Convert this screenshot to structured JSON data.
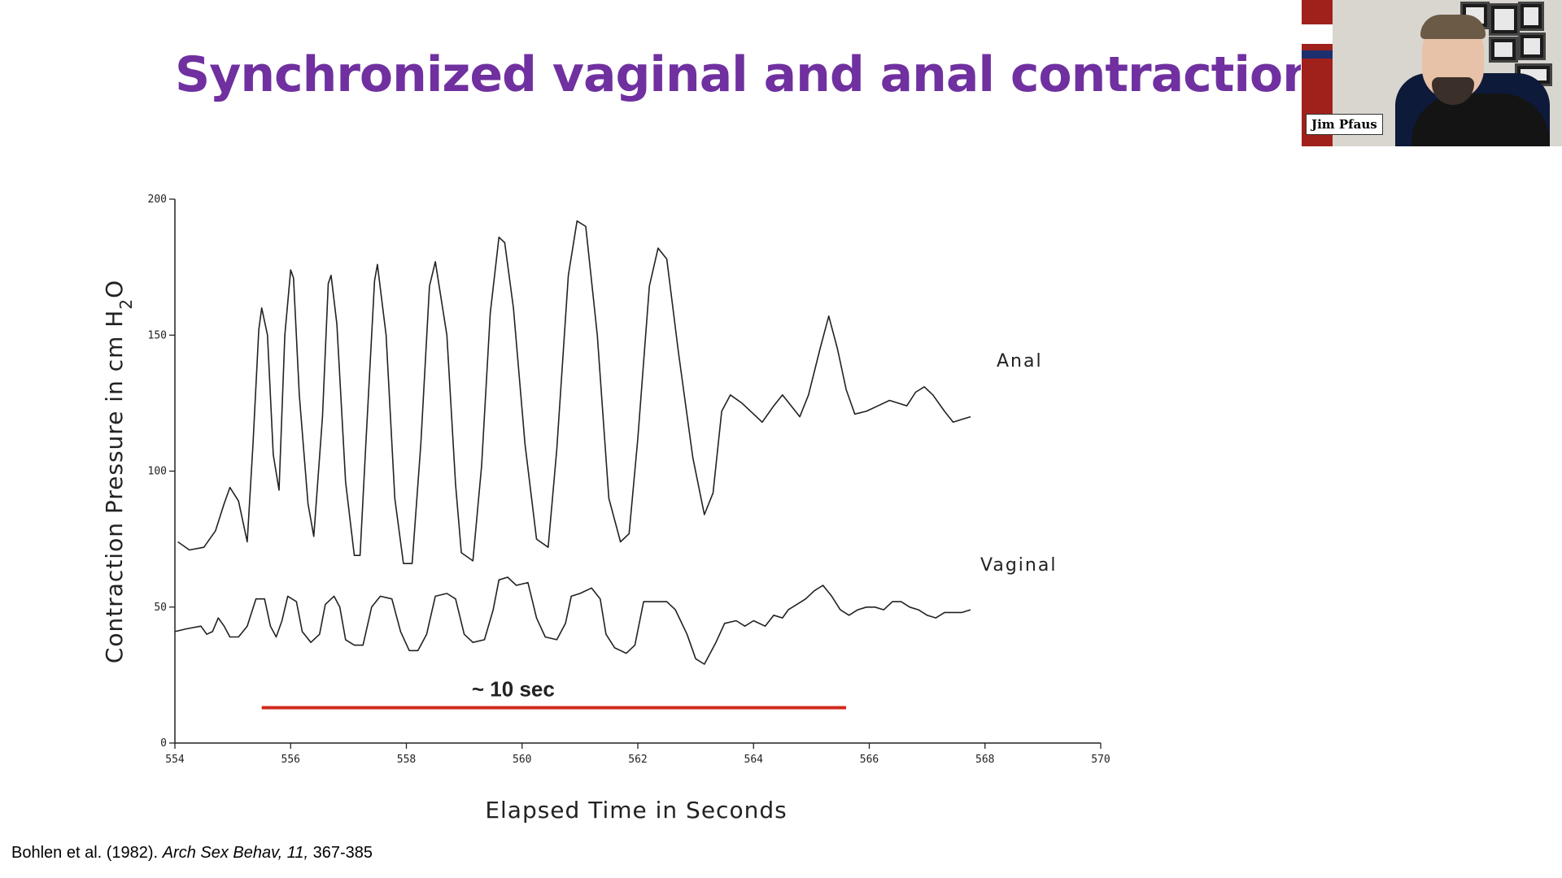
{
  "slide": {
    "title": "Synchronized vaginal and anal contractions at or",
    "citation": {
      "authors_year": "Bohlen et al. (1982).",
      "journal": "Arch Sex Behav,",
      "volume": "11,",
      "pages": "367-385"
    }
  },
  "video_tile": {
    "participant_name": "Jim Pfaus"
  },
  "chart_data": {
    "type": "line",
    "title": "",
    "xlabel": "Elapsed Time in Seconds",
    "ylabel": "Contraction Pressure in cm H2O",
    "ylabel_parts": {
      "main": "Contraction Pressure in  cm  H",
      "sub": "2",
      "tail": "O"
    },
    "xlim": [
      554,
      570
    ],
    "ylim": [
      0,
      200
    ],
    "x_ticks": [
      554,
      556,
      558,
      560,
      562,
      564,
      566,
      568,
      570
    ],
    "y_ticks": [
      0,
      50,
      100,
      150,
      200
    ],
    "grid": false,
    "series": [
      {
        "name": "Anal",
        "color": "#222222",
        "points": [
          [
            554.05,
            74
          ],
          [
            554.25,
            71
          ],
          [
            554.5,
            72
          ],
          [
            554.7,
            78
          ],
          [
            554.85,
            88
          ],
          [
            554.95,
            94
          ],
          [
            555.1,
            89
          ],
          [
            555.25,
            74
          ],
          [
            555.35,
            110
          ],
          [
            555.45,
            152
          ],
          [
            555.5,
            160
          ],
          [
            555.6,
            150
          ],
          [
            555.7,
            106
          ],
          [
            555.8,
            93
          ],
          [
            555.9,
            150
          ],
          [
            556.0,
            174
          ],
          [
            556.05,
            171
          ],
          [
            556.15,
            128
          ],
          [
            556.3,
            88
          ],
          [
            556.4,
            76
          ],
          [
            556.55,
            120
          ],
          [
            556.65,
            169
          ],
          [
            556.7,
            172
          ],
          [
            556.8,
            154
          ],
          [
            556.95,
            96
          ],
          [
            557.1,
            69
          ],
          [
            557.2,
            69
          ],
          [
            557.3,
            110
          ],
          [
            557.45,
            170
          ],
          [
            557.5,
            176
          ],
          [
            557.65,
            150
          ],
          [
            557.8,
            90
          ],
          [
            557.95,
            66
          ],
          [
            558.1,
            66
          ],
          [
            558.25,
            110
          ],
          [
            558.4,
            168
          ],
          [
            558.5,
            177
          ],
          [
            558.7,
            150
          ],
          [
            558.85,
            95
          ],
          [
            558.95,
            70
          ],
          [
            559.15,
            67
          ],
          [
            559.3,
            102
          ],
          [
            559.45,
            158
          ],
          [
            559.6,
            186
          ],
          [
            559.7,
            184
          ],
          [
            559.85,
            160
          ],
          [
            560.05,
            110
          ],
          [
            560.25,
            75
          ],
          [
            560.45,
            72
          ],
          [
            560.6,
            108
          ],
          [
            560.8,
            172
          ],
          [
            560.95,
            192
          ],
          [
            561.1,
            190
          ],
          [
            561.3,
            150
          ],
          [
            561.5,
            90
          ],
          [
            561.7,
            74
          ],
          [
            561.85,
            77
          ],
          [
            562.0,
            112
          ],
          [
            562.2,
            168
          ],
          [
            562.35,
            182
          ],
          [
            562.5,
            178
          ],
          [
            562.7,
            144
          ],
          [
            562.95,
            105
          ],
          [
            563.15,
            84
          ],
          [
            563.3,
            92
          ],
          [
            563.45,
            122
          ],
          [
            563.6,
            128
          ],
          [
            563.8,
            125
          ],
          [
            563.95,
            122
          ],
          [
            564.15,
            118
          ],
          [
            564.35,
            124
          ],
          [
            564.5,
            128
          ],
          [
            564.65,
            124
          ],
          [
            564.8,
            120
          ],
          [
            564.95,
            128
          ],
          [
            565.15,
            145
          ],
          [
            565.3,
            157
          ],
          [
            565.45,
            145
          ],
          [
            565.6,
            130
          ],
          [
            565.75,
            121
          ],
          [
            565.95,
            122
          ],
          [
            566.15,
            124
          ],
          [
            566.35,
            126
          ],
          [
            566.5,
            125
          ],
          [
            566.65,
            124
          ],
          [
            566.8,
            129
          ],
          [
            566.95,
            131
          ],
          [
            567.1,
            128
          ],
          [
            567.3,
            122
          ],
          [
            567.45,
            118
          ],
          [
            567.6,
            119
          ],
          [
            567.75,
            120
          ]
        ]
      },
      {
        "name": "Vaginal",
        "color": "#222222",
        "points": [
          [
            554.0,
            41
          ],
          [
            554.2,
            42
          ],
          [
            554.45,
            43
          ],
          [
            554.55,
            40
          ],
          [
            554.65,
            41
          ],
          [
            554.75,
            46
          ],
          [
            554.85,
            43
          ],
          [
            554.95,
            39
          ],
          [
            555.1,
            39
          ],
          [
            555.25,
            43
          ],
          [
            555.4,
            53
          ],
          [
            555.55,
            53
          ],
          [
            555.65,
            43
          ],
          [
            555.75,
            39
          ],
          [
            555.85,
            45
          ],
          [
            555.95,
            54
          ],
          [
            556.1,
            52
          ],
          [
            556.2,
            41
          ],
          [
            556.35,
            37
          ],
          [
            556.5,
            40
          ],
          [
            556.6,
            51
          ],
          [
            556.75,
            54
          ],
          [
            556.85,
            50
          ],
          [
            556.95,
            38
          ],
          [
            557.1,
            36
          ],
          [
            557.25,
            36
          ],
          [
            557.4,
            50
          ],
          [
            557.55,
            54
          ],
          [
            557.75,
            53
          ],
          [
            557.9,
            41
          ],
          [
            558.05,
            34
          ],
          [
            558.2,
            34
          ],
          [
            558.35,
            40
          ],
          [
            558.5,
            54
          ],
          [
            558.7,
            55
          ],
          [
            558.85,
            53
          ],
          [
            559.0,
            40
          ],
          [
            559.15,
            37
          ],
          [
            559.35,
            38
          ],
          [
            559.5,
            49
          ],
          [
            559.6,
            60
          ],
          [
            559.75,
            61
          ],
          [
            559.9,
            58
          ],
          [
            560.1,
            59
          ],
          [
            560.25,
            46
          ],
          [
            560.4,
            39
          ],
          [
            560.6,
            38
          ],
          [
            560.75,
            44
          ],
          [
            560.85,
            54
          ],
          [
            561.0,
            55
          ],
          [
            561.2,
            57
          ],
          [
            561.35,
            53
          ],
          [
            561.45,
            40
          ],
          [
            561.6,
            35
          ],
          [
            561.8,
            33
          ],
          [
            561.95,
            36
          ],
          [
            562.1,
            52
          ],
          [
            562.3,
            52
          ],
          [
            562.5,
            52
          ],
          [
            562.65,
            49
          ],
          [
            562.85,
            40
          ],
          [
            563.0,
            31
          ],
          [
            563.15,
            29
          ],
          [
            563.35,
            37
          ],
          [
            563.5,
            44
          ],
          [
            563.7,
            45
          ],
          [
            563.85,
            43
          ],
          [
            564.0,
            45
          ],
          [
            564.2,
            43
          ],
          [
            564.35,
            47
          ],
          [
            564.5,
            46
          ],
          [
            564.6,
            49
          ],
          [
            564.75,
            51
          ],
          [
            564.9,
            53
          ],
          [
            565.05,
            56
          ],
          [
            565.2,
            58
          ],
          [
            565.35,
            54
          ],
          [
            565.5,
            49
          ],
          [
            565.65,
            47
          ],
          [
            565.8,
            49
          ],
          [
            565.95,
            50
          ],
          [
            566.1,
            50
          ],
          [
            566.25,
            49
          ],
          [
            566.4,
            52
          ],
          [
            566.55,
            52
          ],
          [
            566.7,
            50
          ],
          [
            566.85,
            49
          ],
          [
            567.0,
            47
          ],
          [
            567.15,
            46
          ],
          [
            567.3,
            48
          ],
          [
            567.45,
            48
          ],
          [
            567.6,
            48
          ],
          [
            567.75,
            49
          ]
        ]
      }
    ],
    "annotation": {
      "text": "~ 10 sec",
      "color": "#d0281c",
      "x_start": 555.5,
      "x_end": 565.6,
      "y": 13
    }
  }
}
